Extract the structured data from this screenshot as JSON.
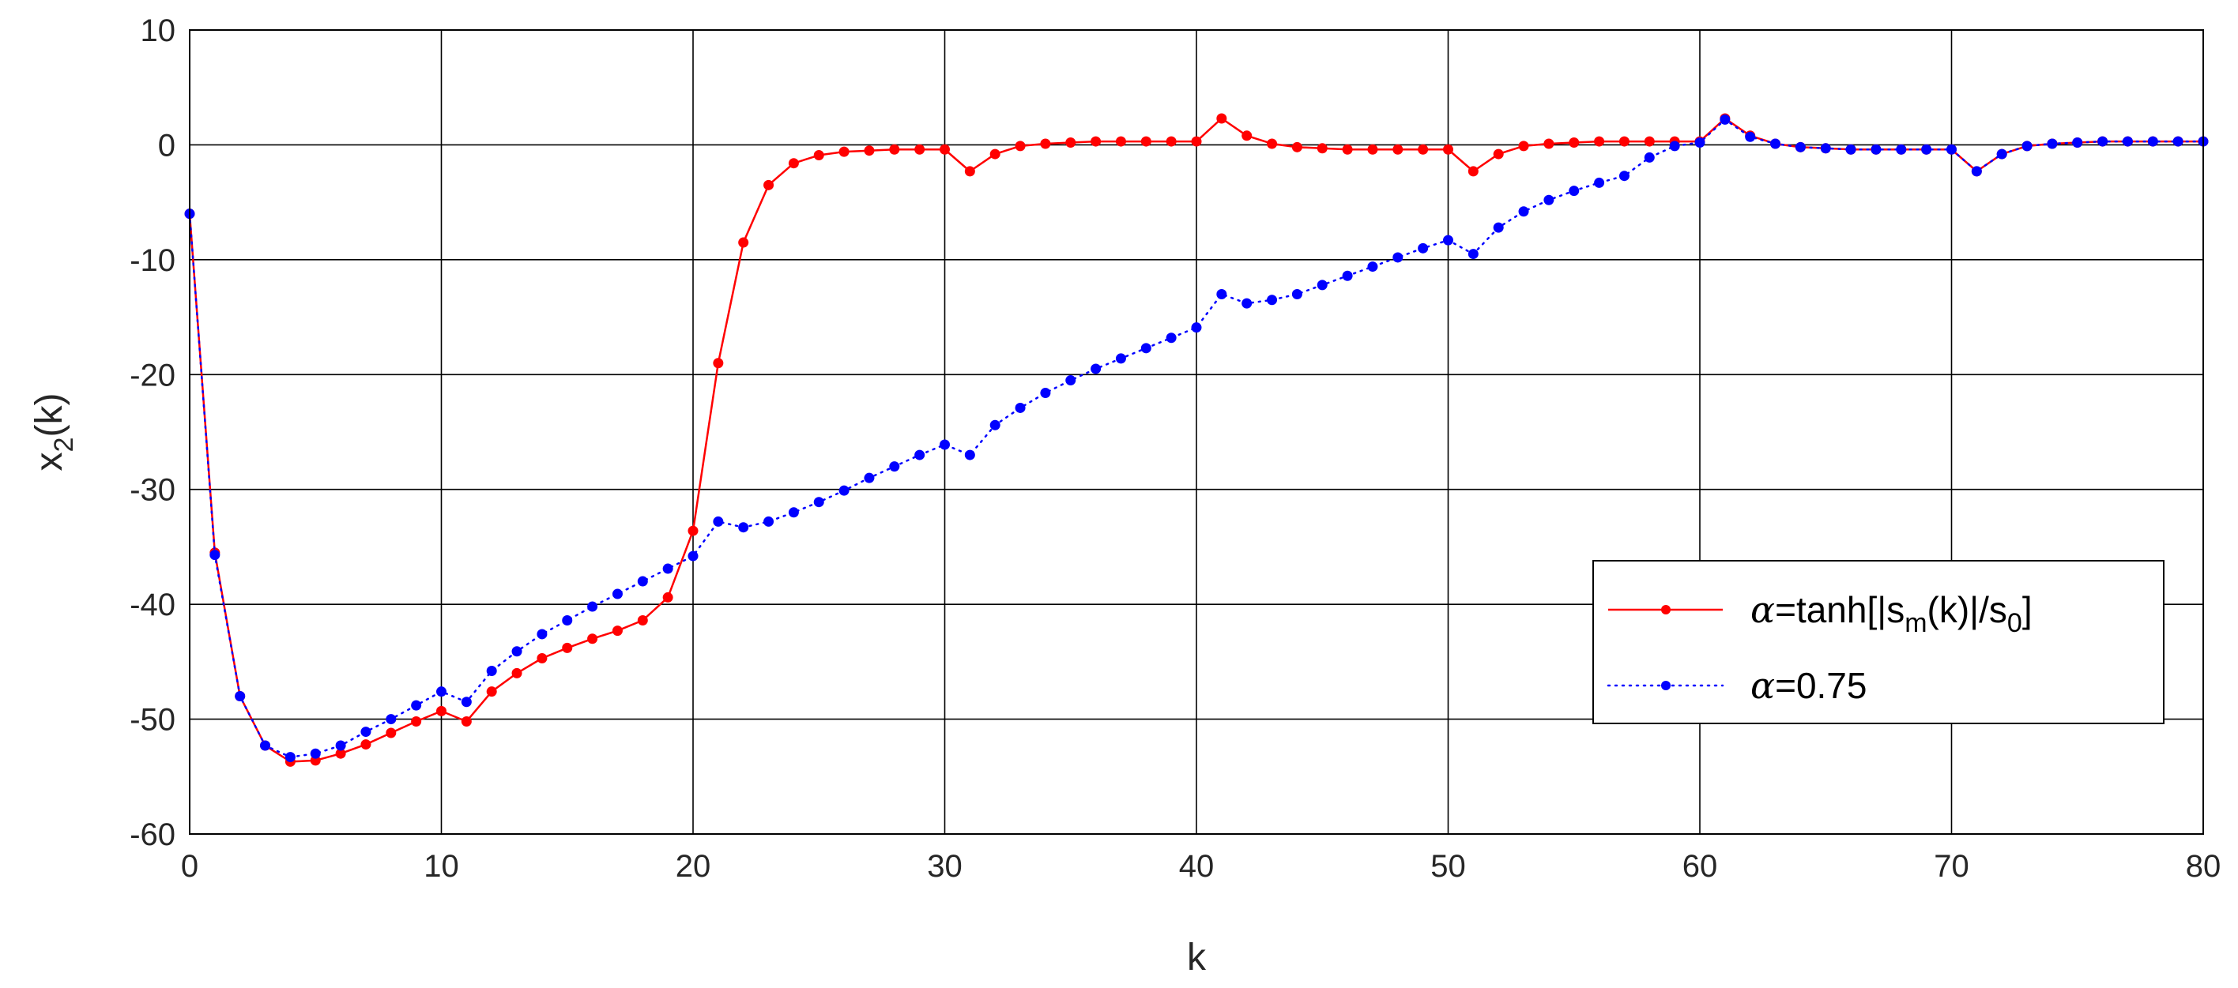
{
  "chart_data": {
    "type": "line",
    "title": "",
    "xlabel": "k",
    "ylabel_main": "x",
    "ylabel_sub": "2",
    "ylabel_tail": "(k)",
    "xlim": [
      0,
      80
    ],
    "ylim": [
      -60,
      10
    ],
    "xticks": [
      0,
      10,
      20,
      30,
      40,
      50,
      60,
      70,
      80
    ],
    "yticks": [
      10,
      0,
      -10,
      -20,
      -30,
      -40,
      -50,
      -60
    ],
    "grid": true,
    "legend_position": "right",
    "x": [
      0,
      1,
      2,
      3,
      4,
      5,
      6,
      7,
      8,
      9,
      10,
      11,
      12,
      13,
      14,
      15,
      16,
      17,
      18,
      19,
      20,
      21,
      22,
      23,
      24,
      25,
      26,
      27,
      28,
      29,
      30,
      31,
      32,
      33,
      34,
      35,
      36,
      37,
      38,
      39,
      40,
      41,
      42,
      43,
      44,
      45,
      46,
      47,
      48,
      49,
      50,
      51,
      52,
      53,
      54,
      55,
      56,
      57,
      58,
      59,
      60,
      61,
      62,
      63,
      64,
      65,
      66,
      67,
      68,
      69,
      70,
      71,
      72,
      73,
      74,
      75,
      76,
      77,
      78,
      79,
      80
    ],
    "series": [
      {
        "legend": {
          "alpha": "α",
          "text1": "=tanh[|s",
          "sub1": "m",
          "text2": "(k)|/s",
          "sub2": "0",
          "text3": "]"
        },
        "color": "#ff0000",
        "line_style": "solid",
        "values": [
          -6,
          -35.5,
          -48,
          -52.3,
          -53.7,
          -53.6,
          -53,
          -52.2,
          -51.2,
          -50.2,
          -49.3,
          -50.2,
          -47.6,
          -46,
          -44.7,
          -43.8,
          -43,
          -42.3,
          -41.4,
          -39.4,
          -33.6,
          -19,
          -8.5,
          -3.5,
          -1.6,
          -0.9,
          -0.6,
          -0.5,
          -0.4,
          -0.4,
          -0.4,
          -2.3,
          -0.8,
          -0.1,
          0.1,
          0.2,
          0.3,
          0.3,
          0.3,
          0.3,
          0.3,
          2.3,
          0.8,
          0.1,
          -0.2,
          -0.3,
          -0.4,
          -0.4,
          -0.4,
          -0.4,
          -0.4,
          -2.3,
          -0.8,
          -0.1,
          0.1,
          0.2,
          0.3,
          0.3,
          0.3,
          0.3,
          0.3,
          2.3,
          0.8,
          0.1,
          -0.2,
          -0.3,
          -0.4,
          -0.4,
          -0.4,
          -0.4,
          -0.4,
          -2.3,
          -0.8,
          -0.1,
          0.1,
          0.2,
          0.3,
          0.3,
          0.3,
          0.3,
          0.3
        ]
      },
      {
        "legend": {
          "alpha": "α",
          "text1": "=0.75"
        },
        "color": "#0000ff",
        "line_style": "dotted",
        "values": [
          -6,
          -35.7,
          -48,
          -52.3,
          -53.3,
          -53,
          -52.3,
          -51.1,
          -50,
          -48.8,
          -47.6,
          -48.5,
          -45.8,
          -44.1,
          -42.6,
          -41.4,
          -40.2,
          -39.1,
          -38,
          -36.9,
          -35.8,
          -32.8,
          -33.3,
          -32.8,
          -32,
          -31.1,
          -30.1,
          -29,
          -28,
          -27,
          -26.1,
          -27,
          -24.4,
          -22.9,
          -21.6,
          -20.5,
          -19.5,
          -18.6,
          -17.7,
          -16.8,
          -15.9,
          -13,
          -13.8,
          -13.5,
          -13,
          -12.2,
          -11.4,
          -10.6,
          -9.8,
          -9,
          -8.3,
          -9.5,
          -7.2,
          -5.8,
          -4.8,
          -4,
          -3.3,
          -2.7,
          -1.1,
          -0.1,
          0.2,
          2.2,
          0.7,
          0.1,
          -0.2,
          -0.3,
          -0.4,
          -0.4,
          -0.4,
          -0.4,
          -0.4,
          -2.3,
          -0.8,
          -0.1,
          0.1,
          0.2,
          0.3,
          0.3,
          0.3,
          0.3,
          0.3
        ]
      }
    ]
  }
}
